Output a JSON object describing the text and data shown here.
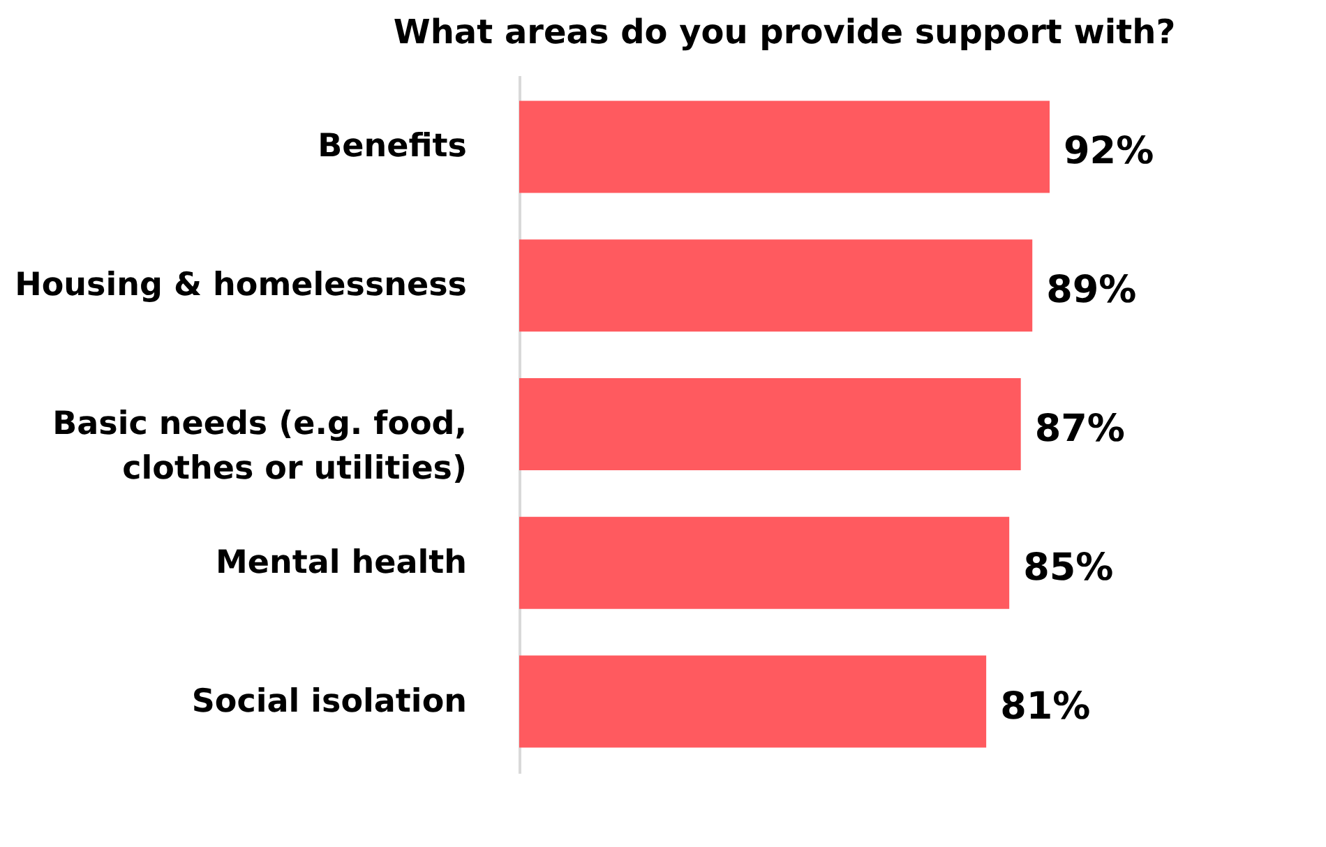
{
  "chart_data": {
    "type": "bar",
    "orientation": "horizontal",
    "title": "What areas do you provide support with?",
    "categories": [
      "Benefits",
      "Housing & homelessness",
      "Basic needs (e.g. food, clothes or utilities)",
      "Mental health",
      "Social isolation"
    ],
    "values": [
      92,
      89,
      87,
      85,
      81
    ],
    "color": "#ff5a5f",
    "value_labels": [
      "92%",
      "89%",
      "87%",
      "85%",
      "81%"
    ],
    "tick_labels": "y"
  }
}
